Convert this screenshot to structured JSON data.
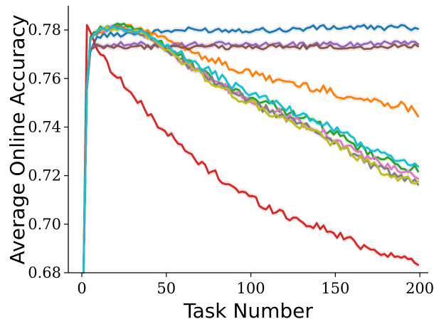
{
  "chart_data": {
    "type": "line",
    "title": "",
    "xlabel": "Task Number",
    "ylabel": "Average Online Accuracy",
    "xlim": [
      -8,
      205
    ],
    "ylim": [
      0.68,
      0.79
    ],
    "xticks": [
      0,
      50,
      100,
      150,
      200
    ],
    "yticks": [
      0.68,
      0.7,
      0.72,
      0.74,
      0.76,
      0.78
    ],
    "ytick_labels": [
      "0.68",
      "0.70",
      "0.72",
      "0.74",
      "0.76",
      "0.78"
    ],
    "xtick_labels": [
      "0",
      "50",
      "100",
      "150",
      "200"
    ],
    "grid": false,
    "legend": "none",
    "series": [
      {
        "color": "#1f77b4",
        "points": [
          [
            1,
            0.675
          ],
          [
            3,
            0.755
          ],
          [
            5,
            0.771
          ],
          [
            8,
            0.776
          ],
          [
            12,
            0.778
          ],
          [
            20,
            0.778
          ],
          [
            30,
            0.779
          ],
          [
            40,
            0.779
          ],
          [
            60,
            0.78
          ],
          [
            80,
            0.78
          ],
          [
            100,
            0.78
          ],
          [
            120,
            0.78
          ],
          [
            140,
            0.781
          ],
          [
            160,
            0.781
          ],
          [
            180,
            0.781
          ],
          [
            199,
            0.781
          ]
        ]
      },
      {
        "color": "#ff7f0e",
        "points": [
          [
            1,
            0.675
          ],
          [
            3,
            0.756
          ],
          [
            5,
            0.776
          ],
          [
            8,
            0.779
          ],
          [
            12,
            0.78
          ],
          [
            20,
            0.781
          ],
          [
            30,
            0.781
          ],
          [
            40,
            0.779
          ],
          [
            50,
            0.776
          ],
          [
            60,
            0.773
          ],
          [
            70,
            0.77
          ],
          [
            80,
            0.767
          ],
          [
            90,
            0.764
          ],
          [
            100,
            0.762
          ],
          [
            110,
            0.76
          ],
          [
            120,
            0.759
          ],
          [
            130,
            0.757
          ],
          [
            140,
            0.756
          ],
          [
            150,
            0.754
          ],
          [
            160,
            0.752
          ],
          [
            170,
            0.751
          ],
          [
            180,
            0.75
          ],
          [
            190,
            0.749
          ],
          [
            199,
            0.746
          ]
        ]
      },
      {
        "color": "#2ca02c",
        "points": [
          [
            1,
            0.675
          ],
          [
            3,
            0.756
          ],
          [
            5,
            0.777
          ],
          [
            8,
            0.78
          ],
          [
            12,
            0.781
          ],
          [
            20,
            0.782
          ],
          [
            30,
            0.781
          ],
          [
            40,
            0.778
          ],
          [
            50,
            0.773
          ],
          [
            60,
            0.768
          ],
          [
            70,
            0.763
          ],
          [
            80,
            0.758
          ],
          [
            90,
            0.755
          ],
          [
            100,
            0.752
          ],
          [
            110,
            0.75
          ],
          [
            120,
            0.747
          ],
          [
            130,
            0.744
          ],
          [
            140,
            0.741
          ],
          [
            150,
            0.737
          ],
          [
            160,
            0.733
          ],
          [
            170,
            0.729
          ],
          [
            180,
            0.726
          ],
          [
            190,
            0.724
          ],
          [
            199,
            0.722
          ]
        ]
      },
      {
        "color": "#d62728",
        "points": [
          [
            1,
            0.675
          ],
          [
            2,
            0.783
          ],
          [
            4,
            0.781
          ],
          [
            8,
            0.774
          ],
          [
            15,
            0.766
          ],
          [
            20,
            0.762
          ],
          [
            30,
            0.753
          ],
          [
            40,
            0.745
          ],
          [
            50,
            0.738
          ],
          [
            60,
            0.731
          ],
          [
            70,
            0.725
          ],
          [
            80,
            0.72
          ],
          [
            90,
            0.715
          ],
          [
            100,
            0.711
          ],
          [
            110,
            0.707
          ],
          [
            120,
            0.704
          ],
          [
            130,
            0.701
          ],
          [
            140,
            0.699
          ],
          [
            150,
            0.696
          ],
          [
            160,
            0.693
          ],
          [
            170,
            0.69
          ],
          [
            180,
            0.688
          ],
          [
            190,
            0.686
          ],
          [
            199,
            0.684
          ]
        ]
      },
      {
        "color": "#9467bd",
        "points": [
          [
            1,
            0.675
          ],
          [
            3,
            0.758
          ],
          [
            5,
            0.772
          ],
          [
            8,
            0.774
          ],
          [
            15,
            0.774
          ],
          [
            25,
            0.774
          ],
          [
            40,
            0.774
          ],
          [
            60,
            0.774
          ],
          [
            80,
            0.774
          ],
          [
            100,
            0.774
          ],
          [
            120,
            0.774
          ],
          [
            140,
            0.774
          ],
          [
            160,
            0.774
          ],
          [
            180,
            0.775
          ],
          [
            199,
            0.775
          ]
        ]
      },
      {
        "color": "#8c564b",
        "points": [
          [
            1,
            0.675
          ],
          [
            3,
            0.758
          ],
          [
            5,
            0.772
          ],
          [
            8,
            0.773
          ],
          [
            15,
            0.773
          ],
          [
            25,
            0.773
          ],
          [
            40,
            0.773
          ],
          [
            60,
            0.773
          ],
          [
            80,
            0.773
          ],
          [
            100,
            0.773
          ],
          [
            120,
            0.773
          ],
          [
            140,
            0.773
          ],
          [
            160,
            0.773
          ],
          [
            180,
            0.773
          ],
          [
            199,
            0.774
          ]
        ]
      },
      {
        "color": "#e377c2",
        "points": [
          [
            1,
            0.675
          ],
          [
            3,
            0.756
          ],
          [
            5,
            0.776
          ],
          [
            8,
            0.779
          ],
          [
            12,
            0.78
          ],
          [
            20,
            0.781
          ],
          [
            30,
            0.78
          ],
          [
            40,
            0.777
          ],
          [
            50,
            0.772
          ],
          [
            60,
            0.767
          ],
          [
            70,
            0.762
          ],
          [
            80,
            0.758
          ],
          [
            90,
            0.754
          ],
          [
            100,
            0.751
          ],
          [
            110,
            0.748
          ],
          [
            120,
            0.745
          ],
          [
            130,
            0.742
          ],
          [
            140,
            0.739
          ],
          [
            150,
            0.735
          ],
          [
            160,
            0.731
          ],
          [
            170,
            0.727
          ],
          [
            180,
            0.724
          ],
          [
            190,
            0.721
          ],
          [
            199,
            0.719
          ]
        ]
      },
      {
        "color": "#7f7f7f",
        "points": [
          [
            1,
            0.675
          ],
          [
            3,
            0.756
          ],
          [
            5,
            0.776
          ],
          [
            8,
            0.779
          ],
          [
            12,
            0.78
          ],
          [
            20,
            0.781
          ],
          [
            30,
            0.78
          ],
          [
            40,
            0.777
          ],
          [
            50,
            0.772
          ],
          [
            60,
            0.767
          ],
          [
            70,
            0.762
          ],
          [
            80,
            0.758
          ],
          [
            90,
            0.754
          ],
          [
            100,
            0.75
          ],
          [
            110,
            0.747
          ],
          [
            120,
            0.744
          ],
          [
            130,
            0.741
          ],
          [
            140,
            0.738
          ],
          [
            150,
            0.734
          ],
          [
            160,
            0.729
          ],
          [
            170,
            0.725
          ],
          [
            180,
            0.722
          ],
          [
            190,
            0.719
          ],
          [
            199,
            0.716
          ]
        ]
      },
      {
        "color": "#bcbd22",
        "points": [
          [
            1,
            0.675
          ],
          [
            3,
            0.756
          ],
          [
            5,
            0.776
          ],
          [
            8,
            0.779
          ],
          [
            12,
            0.78
          ],
          [
            20,
            0.781
          ],
          [
            30,
            0.78
          ],
          [
            40,
            0.777
          ],
          [
            50,
            0.772
          ],
          [
            60,
            0.767
          ],
          [
            70,
            0.762
          ],
          [
            80,
            0.757
          ],
          [
            90,
            0.753
          ],
          [
            100,
            0.75
          ],
          [
            110,
            0.746
          ],
          [
            120,
            0.743
          ],
          [
            130,
            0.74
          ],
          [
            140,
            0.737
          ],
          [
            150,
            0.733
          ],
          [
            160,
            0.729
          ],
          [
            170,
            0.725
          ],
          [
            180,
            0.721
          ],
          [
            190,
            0.719
          ],
          [
            199,
            0.716
          ]
        ]
      },
      {
        "color": "#17becf",
        "points": [
          [
            1,
            0.675
          ],
          [
            3,
            0.756
          ],
          [
            5,
            0.776
          ],
          [
            8,
            0.779
          ],
          [
            12,
            0.78
          ],
          [
            20,
            0.781
          ],
          [
            30,
            0.78
          ],
          [
            40,
            0.778
          ],
          [
            50,
            0.774
          ],
          [
            60,
            0.769
          ],
          [
            70,
            0.765
          ],
          [
            80,
            0.761
          ],
          [
            90,
            0.757
          ],
          [
            100,
            0.754
          ],
          [
            110,
            0.751
          ],
          [
            120,
            0.748
          ],
          [
            130,
            0.745
          ],
          [
            140,
            0.742
          ],
          [
            150,
            0.739
          ],
          [
            160,
            0.735
          ],
          [
            170,
            0.731
          ],
          [
            180,
            0.728
          ],
          [
            190,
            0.726
          ],
          [
            199,
            0.724
          ]
        ]
      }
    ]
  }
}
